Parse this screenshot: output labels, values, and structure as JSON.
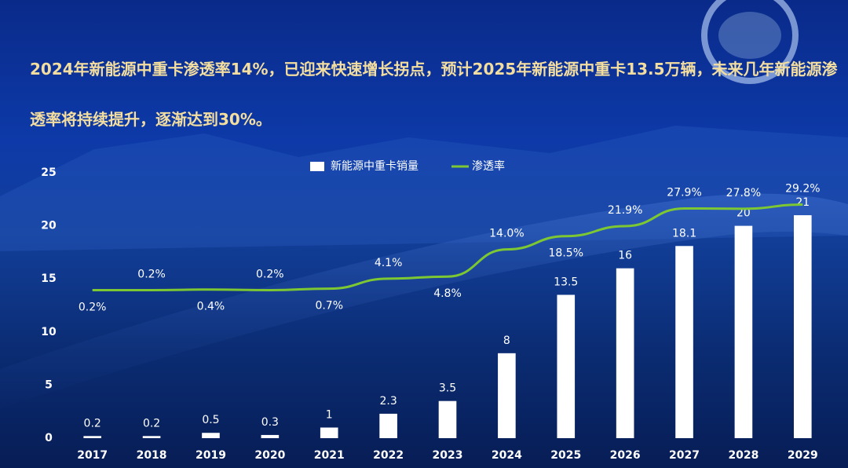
{
  "chart_data": {
    "type": "bar-line",
    "title": "2024年新能源中重卡渗透率14%，已迎来快速增长拐点，预计2025年新能源中重卡13.5万辆，未来几年新能源渗透率将持续提升，逐渐达到30%。",
    "categories": [
      "2017",
      "2018",
      "2019",
      "2020",
      "2021",
      "2022",
      "2023",
      "2024",
      "2025",
      "2026",
      "2027",
      "2028",
      "2029"
    ],
    "series": [
      {
        "name": "新能源中重卡销量",
        "type": "bar",
        "color": "#ffffff",
        "values": [
          0.2,
          0.2,
          0.5,
          0.3,
          1,
          2.3,
          3.5,
          8,
          13.5,
          16,
          18.1,
          20,
          21
        ]
      },
      {
        "name": "渗透率",
        "type": "line",
        "axis": "y2",
        "color": "#7dc832",
        "values": [
          0.2,
          0.2,
          0.4,
          0.2,
          0.7,
          4.1,
          4.8,
          14.0,
          18.5,
          21.9,
          27.9,
          27.8,
          29.2
        ],
        "value_labels": [
          "0.2%",
          "0.2%",
          "0.4%",
          "0.2%",
          "0.7%",
          "4.1%",
          "4.8%",
          "14.0%",
          "18.5%",
          "21.9%",
          "27.9%",
          "27.8%",
          "29.2%"
        ]
      }
    ],
    "ylim": [
      0,
      25
    ],
    "yticks": [
      0,
      5,
      10,
      15,
      20,
      25
    ],
    "y2lim": [
      -50,
      40
    ]
  }
}
